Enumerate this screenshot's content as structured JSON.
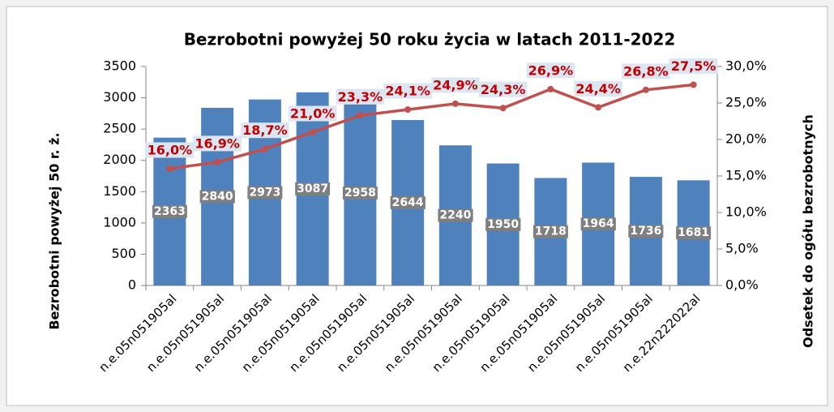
{
  "chart_data": {
    "type": "bar",
    "title": "Bezrobotni powyżej 50 roku życia w latach 2011-2022",
    "y_label": "Bezrobotni powyżej 50 r. ż.",
    "y2_label": "Odsetek do ogółu bezrobotnych",
    "categories": [
      "n.e.05n051905al",
      "n.e.05n051905al",
      "n.e.05n051905al",
      "n.e.05n051905al",
      "n.e.05n051905al",
      "n.e.05n051905al",
      "n.e.05n051905al",
      "n.e.05n051905al",
      "n.e.05n051905al",
      "n.e.05n051905al",
      "n.e.05n051905al",
      "n.e.22n222022al"
    ],
    "series": [
      {
        "type": "bar",
        "color": "#4f81bd",
        "values": [
          2363,
          2840,
          2973,
          3087,
          2958,
          2644,
          2240,
          1950,
          1718,
          1964,
          1736,
          1681
        ]
      },
      {
        "type": "line",
        "axis": "y2",
        "color": "#c0504d",
        "values": [
          16.0,
          16.9,
          18.7,
          21.0,
          23.3,
          24.1,
          24.9,
          24.3,
          26.9,
          24.4,
          26.8,
          27.5
        ],
        "value_labels": [
          "16,0%",
          "16,9%",
          "18,7%",
          "21,0%",
          "23,3%",
          "24,1%",
          "24,9%",
          "24,3%",
          "26,9%",
          "24,4%",
          "26,8%",
          "27,5%"
        ]
      }
    ],
    "ylim": [
      0,
      3500
    ],
    "yticks": [
      0,
      500,
      1000,
      1500,
      2000,
      2500,
      3000,
      3500
    ],
    "y2lim": [
      0,
      30
    ],
    "y2ticks": [
      {
        "value": 0,
        "label": "0,0%"
      },
      {
        "value": 5,
        "label": "5,0%"
      },
      {
        "value": 10,
        "label": "10,0%"
      },
      {
        "value": 15,
        "label": "15,0%"
      },
      {
        "value": 20,
        "label": "20,0%"
      },
      {
        "value": 25,
        "label": "25,0%"
      },
      {
        "value": 30,
        "label": "30,0%"
      }
    ]
  }
}
